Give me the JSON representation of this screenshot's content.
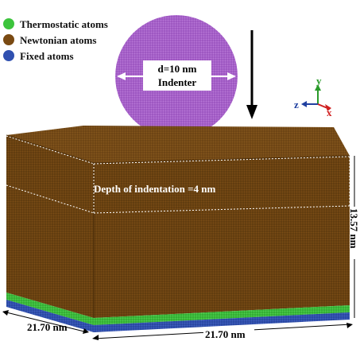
{
  "legend": {
    "items": [
      {
        "label": "Thermostatic atoms",
        "color": "#3cc43c"
      },
      {
        "label": "Newtonian atoms",
        "color": "#7a4a12"
      },
      {
        "label": "Fixed atoms",
        "color": "#3050b0"
      }
    ]
  },
  "indenter": {
    "diameter_label": "d=10 nm",
    "name_label": "Indenter",
    "color": "#a35cc4"
  },
  "axes": {
    "y": "y",
    "z": "z",
    "x": "x"
  },
  "block": {
    "depth_label": "Depth of indentation =4 nm",
    "height_label": "13.57 nm",
    "width_left_label": "21.70 nm",
    "width_bottom_label": "21.70 nm",
    "top_color": "#6a4010",
    "front_color": "#5e3a0e"
  }
}
